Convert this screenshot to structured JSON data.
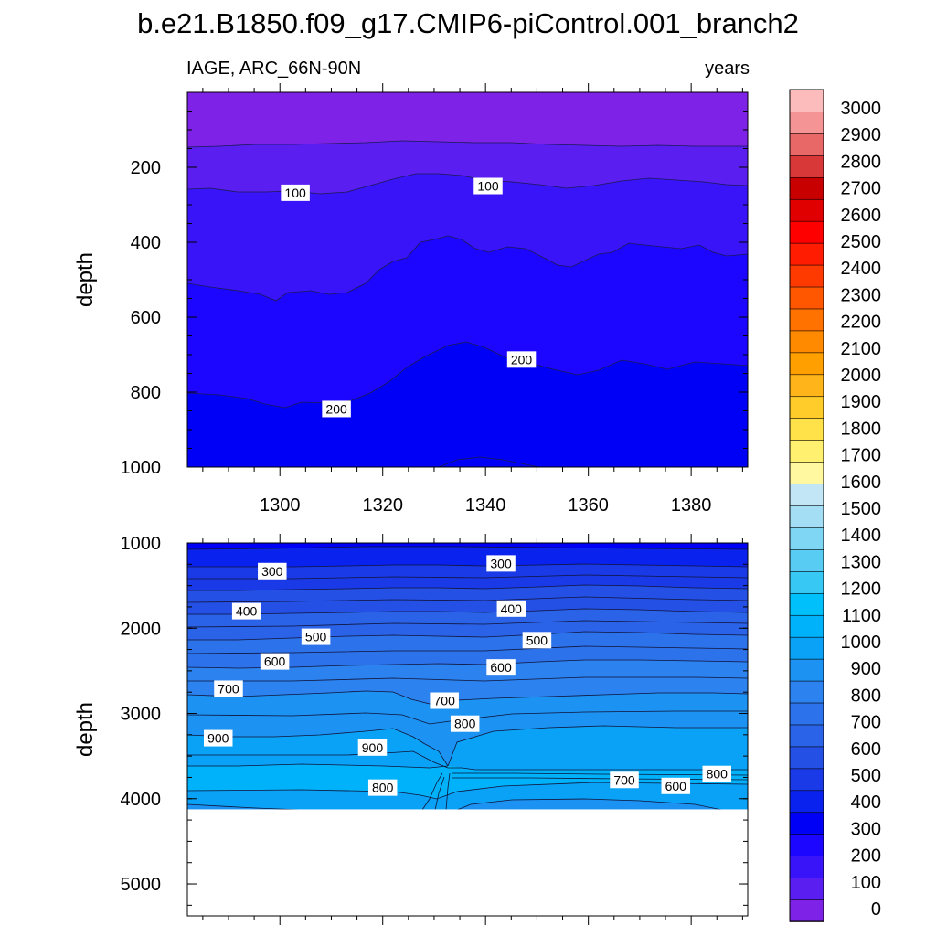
{
  "title": "b.e21.B1850.f09_g17.CMIP6-piControl.001_branch2",
  "chart_data": {
    "type": "heatmap",
    "variable": "IAGE",
    "region": "ARC_66N-90N",
    "units": "years",
    "x": {
      "label": "",
      "range": [
        1282,
        1391
      ],
      "ticks": [
        1300,
        1320,
        1340,
        1360,
        1380
      ],
      "tick_labels": [
        "1300",
        "1320",
        "1340",
        "1360",
        "1380"
      ]
    },
    "colorbar": {
      "levels": [
        0,
        100,
        200,
        300,
        400,
        500,
        600,
        700,
        800,
        900,
        1000,
        1100,
        1200,
        1300,
        1400,
        1500,
        1600,
        1700,
        1800,
        1900,
        2000,
        2100,
        2200,
        2300,
        2400,
        2500,
        2600,
        2700,
        2800,
        2900,
        3000
      ],
      "labels": [
        "3000",
        "2900",
        "2800",
        "2700",
        "2600",
        "2500",
        "2400",
        "2300",
        "2200",
        "2100",
        "2000",
        "1900",
        "1800",
        "1700",
        "1600",
        "1500",
        "1400",
        "1300",
        "1200",
        "1100",
        "1000",
        "900",
        "800",
        "700",
        "600",
        "500",
        "400",
        "300",
        "200",
        "100",
        "0"
      ],
      "colors": [
        "#7d22e6",
        "#5a1ef0",
        "#3a14f8",
        "#1c06ff",
        "#0000f6",
        "#0a22ee",
        "#1a3ae8",
        "#2450e6",
        "#2a62e8",
        "#2c72ea",
        "#2c82ee",
        "#1c92f2",
        "#0aa2f6",
        "#00b2fa",
        "#00c0fc",
        "#38c8f4",
        "#58ccf2",
        "#7ed6f4",
        "#a4def4",
        "#c2e6f6",
        "#fff8a0",
        "#fff070",
        "#ffe24a",
        "#ffcc2a",
        "#ffb41a",
        "#ffa000",
        "#ff8a00",
        "#ff7200",
        "#ff5600",
        "#ff3a00",
        "#ff1c00",
        "#ff0000",
        "#e00000",
        "#c80000",
        "#d83838",
        "#e86868",
        "#f49494",
        "#fcbcbc"
      ]
    },
    "panels": [
      {
        "name": "upper",
        "ylabel": "depth",
        "ylim": [
          0,
          1000
        ],
        "y_ticks": [
          200,
          400,
          600,
          800,
          1000
        ],
        "y_tick_labels": [
          "200",
          "400",
          "600",
          "800",
          "1000"
        ],
        "contour_labels": [
          {
            "text": "100",
            "year": 1303,
            "depth": 268
          },
          {
            "text": "100",
            "year": 1340.5,
            "depth": 250
          },
          {
            "text": "200",
            "year": 1311,
            "depth": 845
          },
          {
            "text": "200",
            "year": 1347,
            "depth": 713
          }
        ]
      },
      {
        "name": "lower",
        "ylabel": "depth",
        "ylim": [
          1000,
          5375
        ],
        "y_ticks": [
          1000,
          2000,
          3000,
          4000,
          5000
        ],
        "y_tick_labels": [
          "1000",
          "2000",
          "3000",
          "4000",
          "5000"
        ],
        "bottom_depth": 4125,
        "contour_labels": [
          {
            "text": "300",
            "year": 1298.5,
            "depth": 1330
          },
          {
            "text": "300",
            "year": 1343,
            "depth": 1240
          },
          {
            "text": "400",
            "year": 1293.5,
            "depth": 1800
          },
          {
            "text": "400",
            "year": 1345,
            "depth": 1770
          },
          {
            "text": "500",
            "year": 1307,
            "depth": 2100
          },
          {
            "text": "500",
            "year": 1350,
            "depth": 2140
          },
          {
            "text": "600",
            "year": 1299,
            "depth": 2390
          },
          {
            "text": "600",
            "year": 1343,
            "depth": 2460
          },
          {
            "text": "700",
            "year": 1290,
            "depth": 2710
          },
          {
            "text": "700",
            "year": 1332,
            "depth": 2850
          },
          {
            "text": "800",
            "year": 1336,
            "depth": 3120
          },
          {
            "text": "900",
            "year": 1288,
            "depth": 3290
          },
          {
            "text": "900",
            "year": 1318,
            "depth": 3400
          },
          {
            "text": "800",
            "year": 1320,
            "depth": 3870
          },
          {
            "text": "700",
            "year": 1367,
            "depth": 3780
          },
          {
            "text": "600",
            "year": 1377,
            "depth": 3850
          },
          {
            "text": "800",
            "year": 1385,
            "depth": 3710
          }
        ]
      }
    ]
  }
}
